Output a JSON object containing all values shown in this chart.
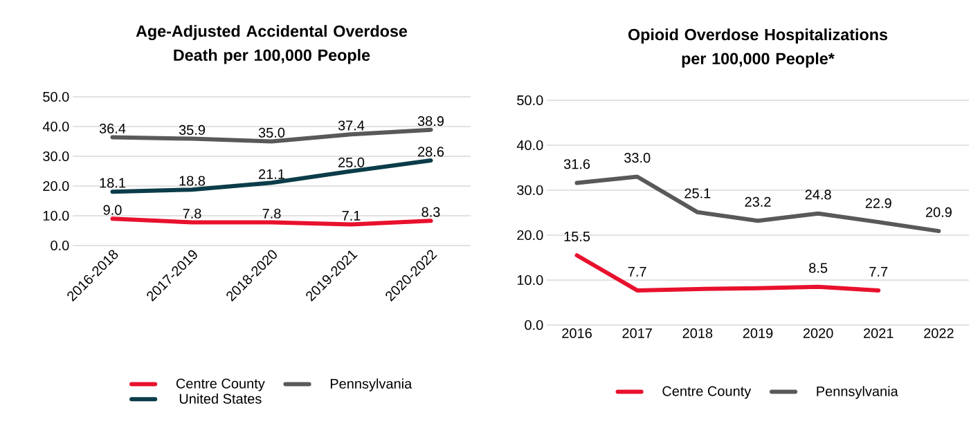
{
  "chart_data": [
    {
      "type": "line",
      "title": "Age-Adjusted Accidental Overdose Death per 100,000 People",
      "categories": [
        "2016-2018",
        "2017-2019",
        "2018-2020",
        "2019-2021",
        "2020-2022"
      ],
      "series": [
        {
          "name": "Centre County",
          "color": "#e8112d",
          "values": [
            9.0,
            7.8,
            7.8,
            7.1,
            8.3
          ],
          "value_labels": [
            "9.0",
            "7.8",
            "7.8",
            "7.1",
            "8.3"
          ]
        },
        {
          "name": "Pennsylvania",
          "color": "#595959",
          "values": [
            36.4,
            35.9,
            35.0,
            37.4,
            38.9
          ],
          "value_labels": [
            "36.4",
            "35.9",
            "35.0",
            "37.4",
            "38.9"
          ]
        },
        {
          "name": "United States",
          "color": "#0b3c49",
          "values": [
            18.1,
            18.8,
            21.1,
            25.0,
            28.6
          ],
          "value_labels": [
            "18.1",
            "18.8",
            "21.1",
            "25.0",
            "28.6"
          ]
        }
      ],
      "ylim": [
        0,
        50
      ],
      "yticks": [
        {
          "value": 0,
          "label": "0.0"
        },
        {
          "value": 10,
          "label": "10.0"
        },
        {
          "value": 20,
          "label": "20.0"
        },
        {
          "value": 30,
          "label": "30.0"
        },
        {
          "value": 40,
          "label": "40.0"
        },
        {
          "value": 50,
          "label": "50.0"
        }
      ],
      "grid": "y",
      "legend": "bottom"
    },
    {
      "type": "line",
      "title": "Opioid Overdose Hospitalizations per 100,000 People*",
      "categories": [
        "2016",
        "2017",
        "2018",
        "2019",
        "2020",
        "2021",
        "2022"
      ],
      "series": [
        {
          "name": "Centre County",
          "color": "#e8112d",
          "values": [
            15.5,
            7.7,
            8.0,
            8.2,
            8.5,
            7.7,
            null
          ],
          "value_labels": [
            "15.5",
            "7.7",
            null,
            null,
            "8.5",
            "7.7",
            null
          ]
        },
        {
          "name": "Pennsylvania",
          "color": "#595959",
          "values": [
            31.6,
            33.0,
            25.1,
            23.2,
            24.8,
            22.9,
            20.9
          ],
          "value_labels": [
            "31.6",
            "33.0",
            "25.1",
            "23.2",
            "24.8",
            "22.9",
            "20.9"
          ]
        }
      ],
      "ylim": [
        0,
        50
      ],
      "yticks": [
        {
          "value": 0,
          "label": "0.0"
        },
        {
          "value": 10,
          "label": "10.0"
        },
        {
          "value": 20,
          "label": "20.0"
        },
        {
          "value": 30,
          "label": "30.0"
        },
        {
          "value": 40,
          "label": "40.0"
        },
        {
          "value": 50,
          "label": "50.0"
        }
      ],
      "grid": "y",
      "legend": "bottom"
    }
  ]
}
